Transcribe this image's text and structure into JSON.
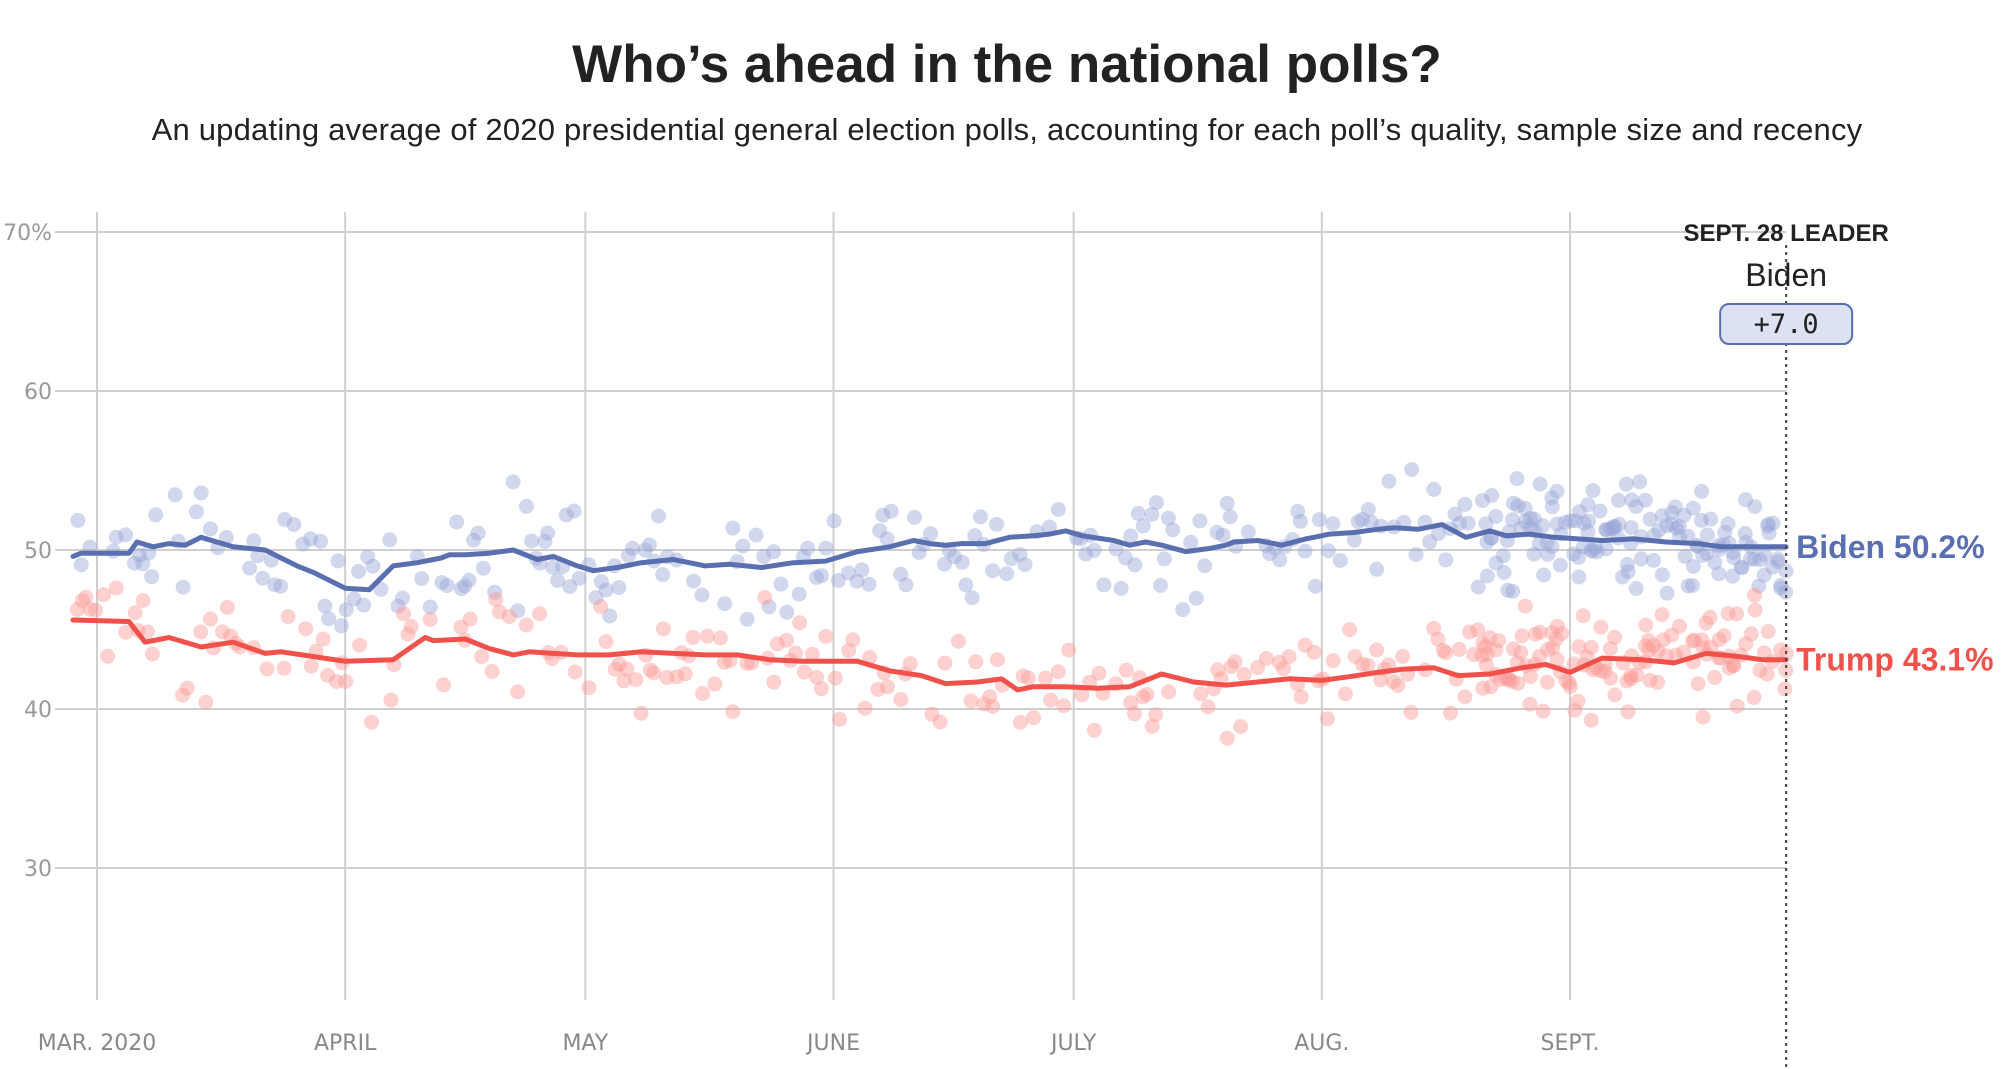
{
  "chart_data": {
    "type": "line",
    "title": "Who’s ahead in the national polls?",
    "subtitle": "An updating average of 2020 presidential general election polls, accounting for each poll’s quality, sample size and recency",
    "x_range": [
      "2020-02-27",
      "2020-09-28"
    ],
    "ylim": [
      20,
      70
    ],
    "y_ticks": [
      {
        "value": 70,
        "label": "70%"
      },
      {
        "value": 60,
        "label": "60"
      },
      {
        "value": 50,
        "label": "50"
      },
      {
        "value": 40,
        "label": "40"
      },
      {
        "value": 30,
        "label": "30"
      }
    ],
    "x_ticks": [
      {
        "date": "2020-03-01",
        "label": "MAR. 2020"
      },
      {
        "date": "2020-04-01",
        "label": "APRIL"
      },
      {
        "date": "2020-05-01",
        "label": "MAY"
      },
      {
        "date": "2020-06-01",
        "label": "JUNE"
      },
      {
        "date": "2020-07-01",
        "label": "JULY"
      },
      {
        "date": "2020-08-01",
        "label": "AUG."
      },
      {
        "date": "2020-09-01",
        "label": "SEPT."
      }
    ],
    "grid": true,
    "series": [
      {
        "name": "Biden",
        "color": "#5a6fb0",
        "dot_color": "#9aa6d6",
        "end_label": "Biden 50.2%",
        "end_value": 50.2,
        "x": [
          "2020-02-27",
          "2020-02-28",
          "2020-03-05",
          "2020-03-06",
          "2020-03-08",
          "2020-03-10",
          "2020-03-12",
          "2020-03-14",
          "2020-03-18",
          "2020-03-22",
          "2020-03-24",
          "2020-03-26",
          "2020-03-28",
          "2020-04-01",
          "2020-04-04",
          "2020-04-07",
          "2020-04-10",
          "2020-04-13",
          "2020-04-14",
          "2020-04-16",
          "2020-04-19",
          "2020-04-22",
          "2020-04-25",
          "2020-04-27",
          "2020-04-30",
          "2020-05-02",
          "2020-05-05",
          "2020-05-08",
          "2020-05-12",
          "2020-05-16",
          "2020-05-19",
          "2020-05-23",
          "2020-05-27",
          "2020-05-31",
          "2020-06-04",
          "2020-06-08",
          "2020-06-11",
          "2020-06-13",
          "2020-06-15",
          "2020-06-17",
          "2020-06-20",
          "2020-06-23",
          "2020-06-26",
          "2020-06-28",
          "2020-06-30",
          "2020-07-02",
          "2020-07-06",
          "2020-07-08",
          "2020-07-10",
          "2020-07-12",
          "2020-07-15",
          "2020-07-18",
          "2020-07-20",
          "2020-07-21",
          "2020-07-24",
          "2020-07-27",
          "2020-07-30",
          "2020-08-02",
          "2020-08-05",
          "2020-08-08",
          "2020-08-10",
          "2020-08-13",
          "2020-08-16",
          "2020-08-19",
          "2020-08-22",
          "2020-08-24",
          "2020-08-27",
          "2020-08-30",
          "2020-09-02",
          "2020-09-05",
          "2020-09-09",
          "2020-09-13",
          "2020-09-17",
          "2020-09-20",
          "2020-09-24",
          "2020-09-28"
        ],
        "values": [
          49.6,
          49.8,
          49.8,
          50.5,
          50.2,
          50.4,
          50.3,
          50.8,
          50.2,
          50.0,
          49.5,
          49.0,
          48.6,
          47.6,
          47.5,
          49.0,
          49.2,
          49.5,
          49.7,
          49.7,
          49.8,
          50.0,
          49.4,
          49.6,
          49.0,
          48.7,
          48.9,
          49.2,
          49.4,
          49.0,
          49.1,
          48.9,
          49.2,
          49.3,
          49.9,
          50.2,
          50.6,
          50.4,
          50.3,
          50.4,
          50.4,
          50.8,
          50.9,
          51.0,
          51.2,
          50.9,
          50.6,
          50.3,
          50.5,
          50.3,
          49.9,
          50.1,
          50.3,
          50.5,
          50.6,
          50.3,
          50.7,
          51.0,
          51.1,
          51.3,
          51.4,
          51.3,
          51.6,
          50.8,
          51.2,
          50.9,
          51.0,
          50.8,
          50.7,
          50.6,
          50.7,
          50.5,
          50.4,
          50.2,
          50.2,
          50.2
        ]
      },
      {
        "name": "Trump",
        "color": "#f0524b",
        "dot_color": "#fb9a95",
        "end_label": "Trump 43.1%",
        "end_value": 43.1,
        "x": [
          "2020-02-27",
          "2020-03-05",
          "2020-03-07",
          "2020-03-10",
          "2020-03-14",
          "2020-03-18",
          "2020-03-22",
          "2020-03-24",
          "2020-03-28",
          "2020-04-01",
          "2020-04-07",
          "2020-04-11",
          "2020-04-12",
          "2020-04-16",
          "2020-04-19",
          "2020-04-22",
          "2020-04-24",
          "2020-04-27",
          "2020-04-30",
          "2020-05-04",
          "2020-05-08",
          "2020-05-12",
          "2020-05-16",
          "2020-05-20",
          "2020-05-24",
          "2020-05-28",
          "2020-05-31",
          "2020-06-04",
          "2020-06-08",
          "2020-06-12",
          "2020-06-15",
          "2020-06-19",
          "2020-06-22",
          "2020-06-24",
          "2020-06-26",
          "2020-06-30",
          "2020-07-04",
          "2020-07-08",
          "2020-07-12",
          "2020-07-16",
          "2020-07-20",
          "2020-07-24",
          "2020-07-28",
          "2020-08-01",
          "2020-08-04",
          "2020-08-08",
          "2020-08-11",
          "2020-08-15",
          "2020-08-18",
          "2020-08-22",
          "2020-08-26",
          "2020-08-29",
          "2020-09-01",
          "2020-09-05",
          "2020-09-10",
          "2020-09-14",
          "2020-09-18",
          "2020-09-22",
          "2020-09-25",
          "2020-09-28"
        ],
        "values": [
          45.6,
          45.5,
          44.2,
          44.5,
          43.9,
          44.2,
          43.5,
          43.6,
          43.3,
          43.0,
          43.1,
          44.5,
          44.3,
          44.4,
          43.8,
          43.4,
          43.6,
          43.5,
          43.4,
          43.4,
          43.6,
          43.5,
          43.4,
          43.4,
          43.1,
          43.0,
          43.0,
          43.0,
          42.4,
          42.1,
          41.6,
          41.7,
          41.9,
          41.2,
          41.4,
          41.4,
          41.3,
          41.4,
          42.2,
          41.7,
          41.5,
          41.7,
          41.9,
          41.8,
          42.0,
          42.3,
          42.5,
          42.6,
          42.1,
          42.2,
          42.6,
          42.8,
          42.3,
          43.2,
          43.1,
          42.9,
          43.5,
          43.3,
          43.1,
          43.1
        ]
      }
    ],
    "annotation": {
      "date": "2020-09-28",
      "heading": "SEPT. 28 LEADER",
      "leader": "Biden",
      "margin": "+7.0"
    }
  }
}
